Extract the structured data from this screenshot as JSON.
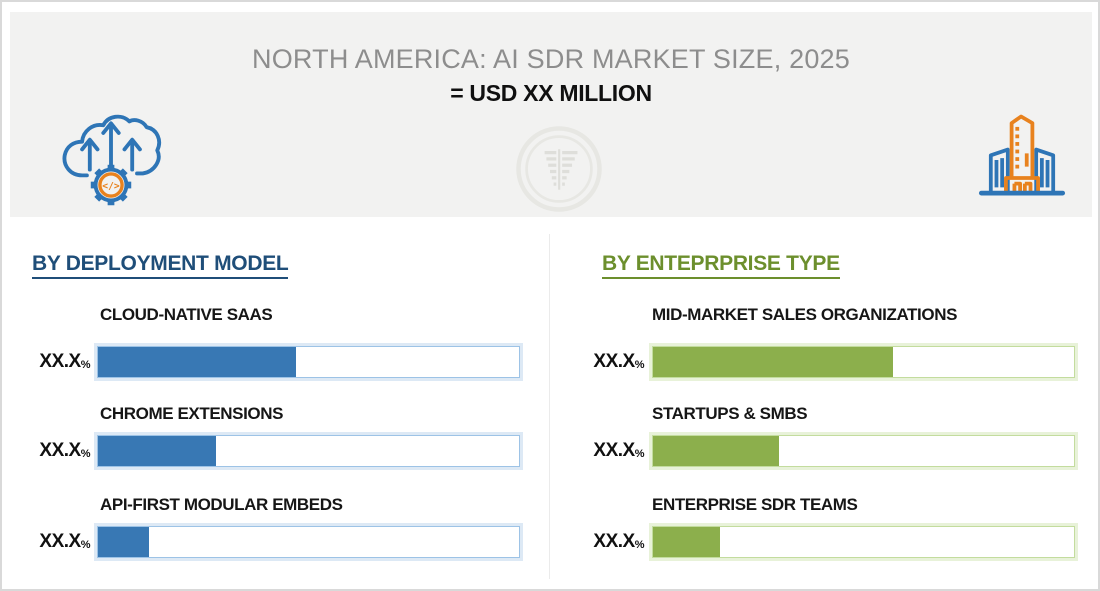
{
  "page": {
    "header": {
      "title": "NORTH AMERICA: AI SDR MARKET SIZE, 2025",
      "subtitle": "= USD XX MILLION"
    },
    "icons": {
      "left": "cloud-migration-gear-code-icon",
      "center": "bar-funnel-watermark-icon",
      "right": "enterprise-buildings-icon"
    },
    "colors": {
      "header_bg": "#F2F2F1",
      "title_gray": "#8D8D8D",
      "deployment_heading": "#1F4E79",
      "enterprise_heading": "#6C8F2D",
      "blue_bar": "#3878B4",
      "blue_bar_border": "#9DC3E6",
      "green_bar": "#8CAF4C",
      "green_bar_border": "#C3DC9E",
      "icon_blue": "#2E75B6",
      "icon_orange": "#E8821E"
    }
  },
  "chart_data": [
    {
      "type": "bar",
      "orientation": "horizontal",
      "title": "BY DEPLOYMENT MODEL",
      "legend_position": "none",
      "grid": false,
      "bar_color": "#3878B4",
      "rows": [
        {
          "label": "CLOUD-NATIVE SAAS",
          "value": "XX.X",
          "unit": "%",
          "fill_pct": 47
        },
        {
          "label": "CHROME EXTENSIONS",
          "value": "XX.X",
          "unit": "%",
          "fill_pct": 28
        },
        {
          "label": "API-FIRST MODULAR EMBEDS",
          "value": "XX.X",
          "unit": "%",
          "fill_pct": 12
        }
      ],
      "note": "displayed values are masked as XX.X%; fill_pct estimated from bar lengths (track = 100%)"
    },
    {
      "type": "bar",
      "orientation": "horizontal",
      "title": "BY ENTEPRPRISE TYPE",
      "legend_position": "none",
      "grid": false,
      "bar_color": "#8CAF4C",
      "rows": [
        {
          "label": "MID-MARKET SALES ORGANIZATIONS",
          "value": "XX.X",
          "unit": "%",
          "fill_pct": 57
        },
        {
          "label": "STARTUPS & SMBS",
          "value": "XX.X",
          "unit": "%",
          "fill_pct": 30
        },
        {
          "label": "ENTERPRISE SDR TEAMS",
          "value": "XX.X",
          "unit": "%",
          "fill_pct": 16
        }
      ],
      "note": "displayed values are masked as XX.X%; fill_pct estimated from bar lengths (track = 100%)"
    }
  ]
}
